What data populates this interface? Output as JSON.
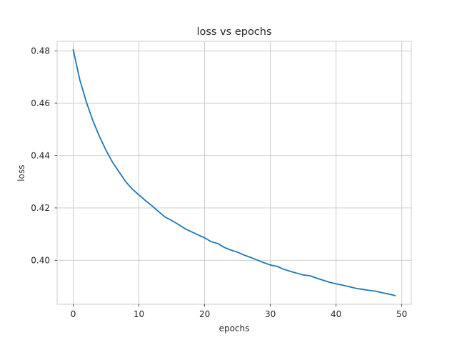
{
  "chart_data": {
    "type": "line",
    "title": "loss vs epochs",
    "xlabel": "epochs",
    "ylabel": "loss",
    "xlim": [
      -2.45,
      51.45
    ],
    "ylim": [
      0.3832,
      0.4837
    ],
    "x_ticks": [
      0,
      10,
      20,
      30,
      40,
      50
    ],
    "y_ticks": [
      0.4,
      0.42,
      0.44,
      0.46,
      0.48
    ],
    "y_tick_labels": [
      "0.40",
      "0.42",
      "0.44",
      "0.46",
      "0.48"
    ],
    "grid": true,
    "series": [
      {
        "color": "#1f77b4",
        "x": [
          0,
          1,
          2,
          3,
          4,
          5,
          6,
          7,
          8,
          9,
          10,
          11,
          12,
          13,
          14,
          15,
          16,
          17,
          18,
          19,
          20,
          21,
          22,
          23,
          24,
          25,
          26,
          27,
          28,
          29,
          30,
          31,
          32,
          33,
          34,
          35,
          36,
          37,
          38,
          39,
          40,
          41,
          42,
          43,
          44,
          45,
          46,
          47,
          48,
          49
        ],
        "y": [
          0.4805,
          0.469,
          0.4605,
          0.4533,
          0.4473,
          0.442,
          0.4374,
          0.4337,
          0.43,
          0.4272,
          0.425,
          0.4228,
          0.4208,
          0.4186,
          0.4165,
          0.4152,
          0.4137,
          0.4121,
          0.4109,
          0.4097,
          0.4086,
          0.4071,
          0.4064,
          0.4049,
          0.4039,
          0.4031,
          0.402,
          0.4011,
          0.4001,
          0.3991,
          0.3982,
          0.3977,
          0.3966,
          0.3958,
          0.3951,
          0.3944,
          0.3941,
          0.3932,
          0.3924,
          0.3916,
          0.391,
          0.3905,
          0.3899,
          0.3893,
          0.3889,
          0.3885,
          0.3882,
          0.3876,
          0.3871,
          0.3865
        ]
      }
    ]
  }
}
